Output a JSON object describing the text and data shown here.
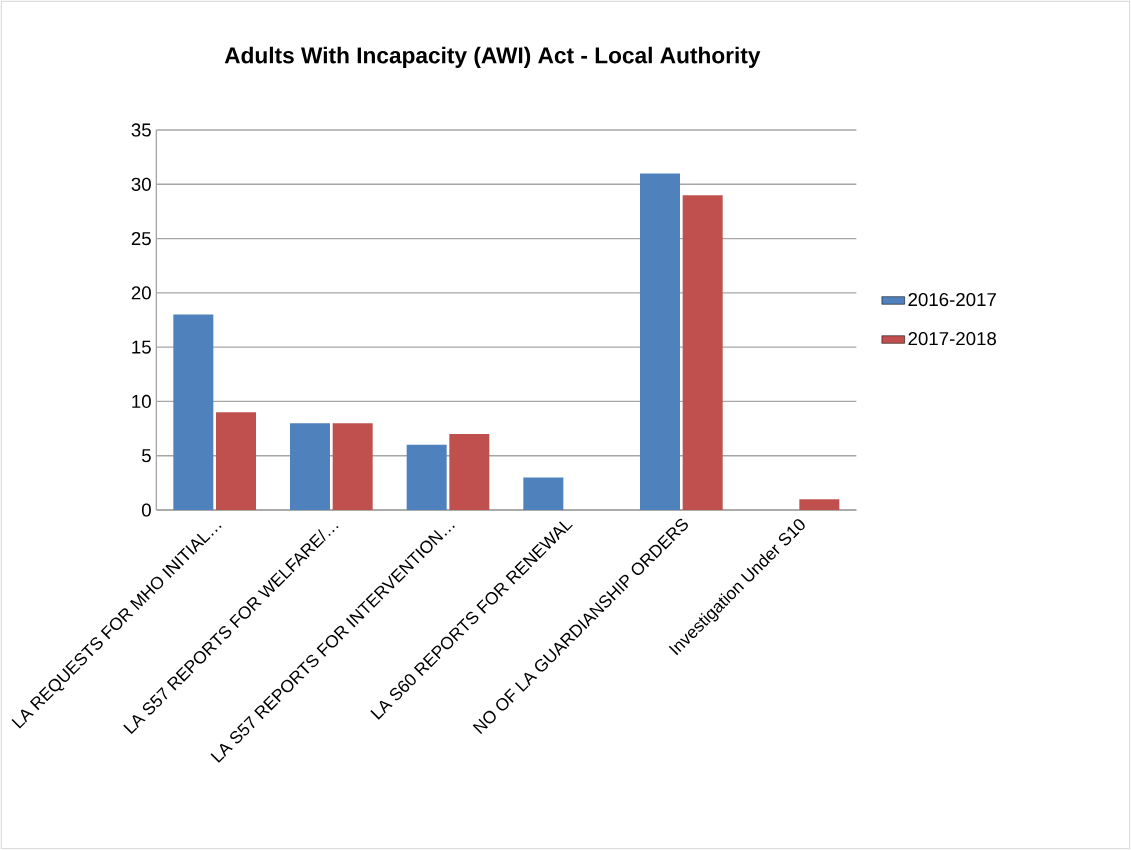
{
  "chart_data": {
    "type": "bar",
    "title": "Adults With Incapacity (AWI) Act - Local Authority",
    "categories": [
      "LA REQUESTS FOR MHO INITIAL…",
      "LA S57 REPORTS FOR WELFARE/…",
      "LA S57 REPORTS FOR INTERVENTION…",
      "LA S60 REPORTS FOR RENEWAL",
      "NO OF LA GUARDIANSHIP ORDERS",
      "Investigation Under S10"
    ],
    "series": [
      {
        "name": "2016-2017",
        "color": "#4f81bd",
        "values": [
          18,
          8,
          6,
          3,
          31,
          0
        ]
      },
      {
        "name": "2017-2018",
        "color": "#c0504d",
        "values": [
          9,
          8,
          7,
          0,
          29,
          1
        ]
      }
    ],
    "ylim": [
      0,
      35
    ],
    "yticks": [
      0,
      5,
      10,
      15,
      20,
      25,
      30,
      35
    ],
    "grid": "y",
    "legend": "right"
  }
}
